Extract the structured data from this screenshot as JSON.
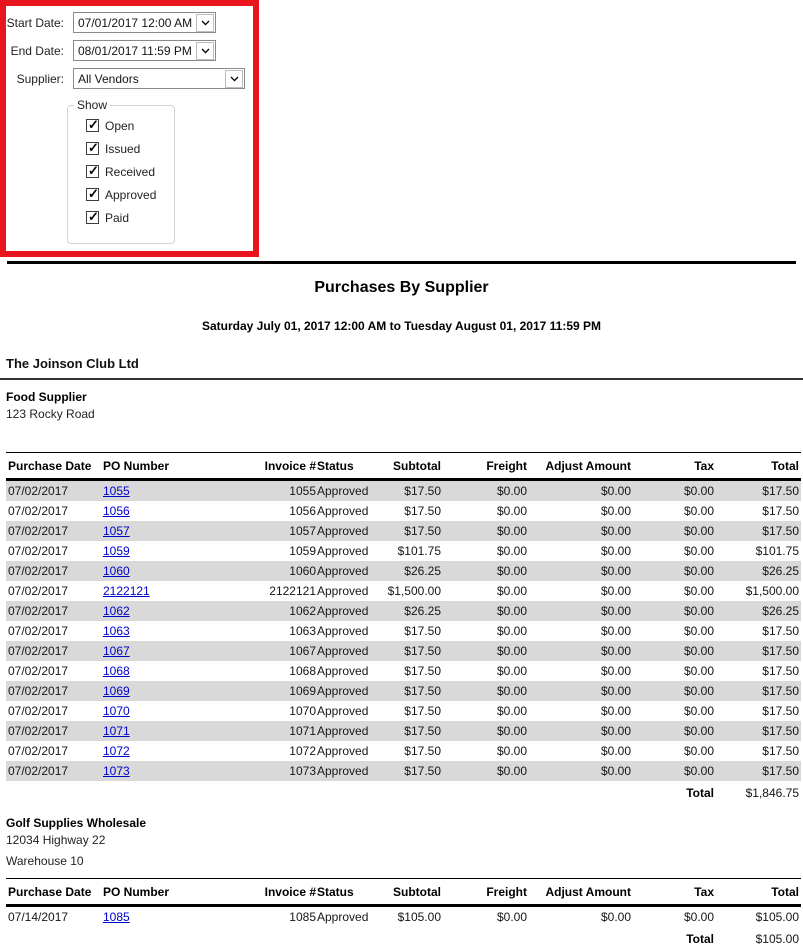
{
  "colors": {
    "highlight_border": "#E8151D",
    "row_shade": "#D9D9D9",
    "link": "#0000CC"
  },
  "filters": {
    "start_date": {
      "label": "Start Date:",
      "value": "07/01/2017 12:00 AM"
    },
    "end_date": {
      "label": "End Date:",
      "value": "08/01/2017 11:59 PM"
    },
    "supplier": {
      "label": "Supplier:",
      "value": "All Vendors"
    },
    "show_group": {
      "label": "Show",
      "options": [
        {
          "label": "Open",
          "checked": true
        },
        {
          "label": "Issued",
          "checked": true
        },
        {
          "label": "Received",
          "checked": true
        },
        {
          "label": "Approved",
          "checked": true
        },
        {
          "label": "Paid",
          "checked": true
        }
      ]
    }
  },
  "report": {
    "title": "Purchases By Supplier",
    "date_range": "Saturday July 01, 2017 12:00 AM to Tuesday August 01, 2017 11:59 PM",
    "company": "The Joinson Club Ltd",
    "columns": [
      "Purchase Date",
      "PO Number",
      "Invoice #",
      "Status",
      "Subtotal",
      "Freight",
      "Adjust Amount",
      "Tax",
      "Total"
    ],
    "total_label": "Total",
    "suppliers": [
      {
        "name": "Food Supplier",
        "address_lines": [
          "123 Rocky Road"
        ],
        "rows": [
          {
            "date": "07/02/2017",
            "po": "1055",
            "invoice": "1055",
            "status": "Approved",
            "subtotal": "$17.50",
            "freight": "$0.00",
            "adjust": "$0.00",
            "tax": "$0.00",
            "total": "$17.50"
          },
          {
            "date": "07/02/2017",
            "po": "1056",
            "invoice": "1056",
            "status": "Approved",
            "subtotal": "$17.50",
            "freight": "$0.00",
            "adjust": "$0.00",
            "tax": "$0.00",
            "total": "$17.50"
          },
          {
            "date": "07/02/2017",
            "po": "1057",
            "invoice": "1057",
            "status": "Approved",
            "subtotal": "$17.50",
            "freight": "$0.00",
            "adjust": "$0.00",
            "tax": "$0.00",
            "total": "$17.50"
          },
          {
            "date": "07/02/2017",
            "po": "1059",
            "invoice": "1059",
            "status": "Approved",
            "subtotal": "$101.75",
            "freight": "$0.00",
            "adjust": "$0.00",
            "tax": "$0.00",
            "total": "$101.75"
          },
          {
            "date": "07/02/2017",
            "po": "1060",
            "invoice": "1060",
            "status": "Approved",
            "subtotal": "$26.25",
            "freight": "$0.00",
            "adjust": "$0.00",
            "tax": "$0.00",
            "total": "$26.25"
          },
          {
            "date": "07/02/2017",
            "po": "2122121",
            "invoice": "2122121",
            "status": "Approved",
            "subtotal": "$1,500.00",
            "freight": "$0.00",
            "adjust": "$0.00",
            "tax": "$0.00",
            "total": "$1,500.00"
          },
          {
            "date": "07/02/2017",
            "po": "1062",
            "invoice": "1062",
            "status": "Approved",
            "subtotal": "$26.25",
            "freight": "$0.00",
            "adjust": "$0.00",
            "tax": "$0.00",
            "total": "$26.25"
          },
          {
            "date": "07/02/2017",
            "po": "1063",
            "invoice": "1063",
            "status": "Approved",
            "subtotal": "$17.50",
            "freight": "$0.00",
            "adjust": "$0.00",
            "tax": "$0.00",
            "total": "$17.50"
          },
          {
            "date": "07/02/2017",
            "po": "1067",
            "invoice": "1067",
            "status": "Approved",
            "subtotal": "$17.50",
            "freight": "$0.00",
            "adjust": "$0.00",
            "tax": "$0.00",
            "total": "$17.50"
          },
          {
            "date": "07/02/2017",
            "po": "1068",
            "invoice": "1068",
            "status": "Approved",
            "subtotal": "$17.50",
            "freight": "$0.00",
            "adjust": "$0.00",
            "tax": "$0.00",
            "total": "$17.50"
          },
          {
            "date": "07/02/2017",
            "po": "1069",
            "invoice": "1069",
            "status": "Approved",
            "subtotal": "$17.50",
            "freight": "$0.00",
            "adjust": "$0.00",
            "tax": "$0.00",
            "total": "$17.50"
          },
          {
            "date": "07/02/2017",
            "po": "1070",
            "invoice": "1070",
            "status": "Approved",
            "subtotal": "$17.50",
            "freight": "$0.00",
            "adjust": "$0.00",
            "tax": "$0.00",
            "total": "$17.50"
          },
          {
            "date": "07/02/2017",
            "po": "1071",
            "invoice": "1071",
            "status": "Approved",
            "subtotal": "$17.50",
            "freight": "$0.00",
            "adjust": "$0.00",
            "tax": "$0.00",
            "total": "$17.50"
          },
          {
            "date": "07/02/2017",
            "po": "1072",
            "invoice": "1072",
            "status": "Approved",
            "subtotal": "$17.50",
            "freight": "$0.00",
            "adjust": "$0.00",
            "tax": "$0.00",
            "total": "$17.50"
          },
          {
            "date": "07/02/2017",
            "po": "1073",
            "invoice": "1073",
            "status": "Approved",
            "subtotal": "$17.50",
            "freight": "$0.00",
            "adjust": "$0.00",
            "tax": "$0.00",
            "total": "$17.50"
          }
        ],
        "total": "$1,846.75"
      },
      {
        "name": "Golf Supplies Wholesale",
        "address_lines": [
          "12034 Highway 22",
          "Warehouse 10"
        ],
        "rows": [
          {
            "date": "07/14/2017",
            "po": "1085",
            "invoice": "1085",
            "status": "Approved",
            "subtotal": "$105.00",
            "freight": "$0.00",
            "adjust": "$0.00",
            "tax": "$0.00",
            "total": "$105.00"
          }
        ],
        "total": "$105.00"
      }
    ]
  }
}
